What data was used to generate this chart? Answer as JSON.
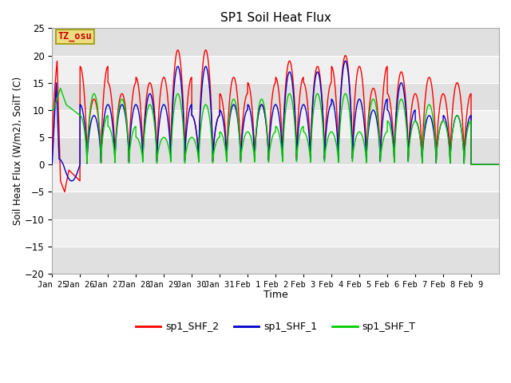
{
  "title": "SP1 Soil Heat Flux",
  "xlabel": "Time",
  "ylabel": "Soil Heat Flux (W/m2), SoilT (C)",
  "ylim": [
    -20,
    25
  ],
  "line_colors": {
    "shf2": "#ff0000",
    "shf1": "#0000cc",
    "shft": "#00cc00"
  },
  "legend_labels": [
    "sp1_SHF_2",
    "sp1_SHF_1",
    "sp1_SHF_T"
  ],
  "tz_label": "TZ_osu",
  "xtick_labels": [
    "Jan 25",
    "Jan 26",
    "Jan 27",
    "Jan 28",
    "Jan 29",
    "Jan 30",
    "Jan 31",
    "Feb 1",
    "Feb 2",
    "Feb 3",
    "Feb 4",
    "Feb 5",
    "Feb 6",
    "Feb 7",
    "Feb 8",
    "Feb 9"
  ],
  "yticks": [
    -20,
    -15,
    -10,
    -5,
    0,
    5,
    10,
    15,
    20,
    25
  ],
  "shf2_peaks": [
    19,
    12,
    13,
    15,
    21,
    21,
    16,
    11,
    19,
    18,
    20,
    14,
    17,
    16,
    15
  ],
  "shf2_troughs": [
    0,
    18,
    15,
    16,
    16,
    9,
    13,
    15,
    16,
    15,
    18,
    18,
    13,
    13,
    13
  ],
  "shf1_peaks": [
    15,
    9,
    11,
    13,
    18,
    18,
    11,
    11,
    17,
    17,
    19,
    10,
    15,
    9,
    9
  ],
  "shf1_troughs": [
    0,
    11,
    11,
    11,
    11,
    9,
    10,
    11,
    11,
    11,
    12,
    12,
    10,
    8,
    9
  ],
  "shft_peaks": [
    14,
    13,
    12,
    11,
    13,
    11,
    12,
    12,
    13,
    13,
    13,
    12,
    12,
    11,
    9
  ],
  "shft_troughs": [
    10,
    9,
    7,
    5,
    5,
    5,
    6,
    6,
    7,
    6,
    6,
    6,
    8,
    8,
    8
  ]
}
